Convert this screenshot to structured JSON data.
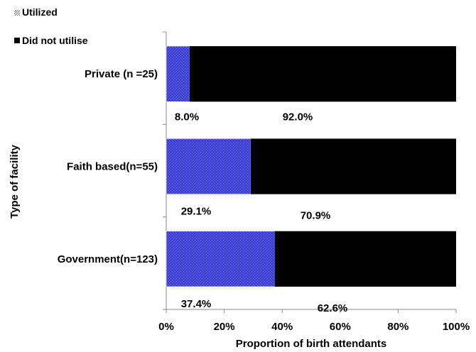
{
  "chart_data": {
    "type": "bar",
    "stacked": true,
    "orientation": "horizontal",
    "percent_stacked": true,
    "title": "",
    "xlabel": "Proportion of  birth attendants",
    "ylabel": "Type of facility",
    "xlim": [
      0,
      100
    ],
    "x_ticks": [
      "0%",
      "20%",
      "40%",
      "60%",
      "80%",
      "100%"
    ],
    "x_tick_values": [
      0,
      20,
      40,
      60,
      80,
      100
    ],
    "grid": false,
    "legend_position": "top-left",
    "categories": [
      "Private (n =25)",
      "Faith based(n=55)",
      "Government(n=123)"
    ],
    "series": [
      {
        "name": "Utilized",
        "color": "#3a3af0",
        "pattern": "dotted",
        "values": [
          8.0,
          29.1,
          37.4
        ],
        "labels": [
          "8.0%",
          "29.1%",
          "37.4%"
        ]
      },
      {
        "name": "Did not utilise",
        "color": "#000000",
        "pattern": "solid",
        "values": [
          92.0,
          70.9,
          62.6
        ],
        "labels": [
          "92.0%",
          "70.9%",
          "62.6%"
        ]
      }
    ]
  }
}
